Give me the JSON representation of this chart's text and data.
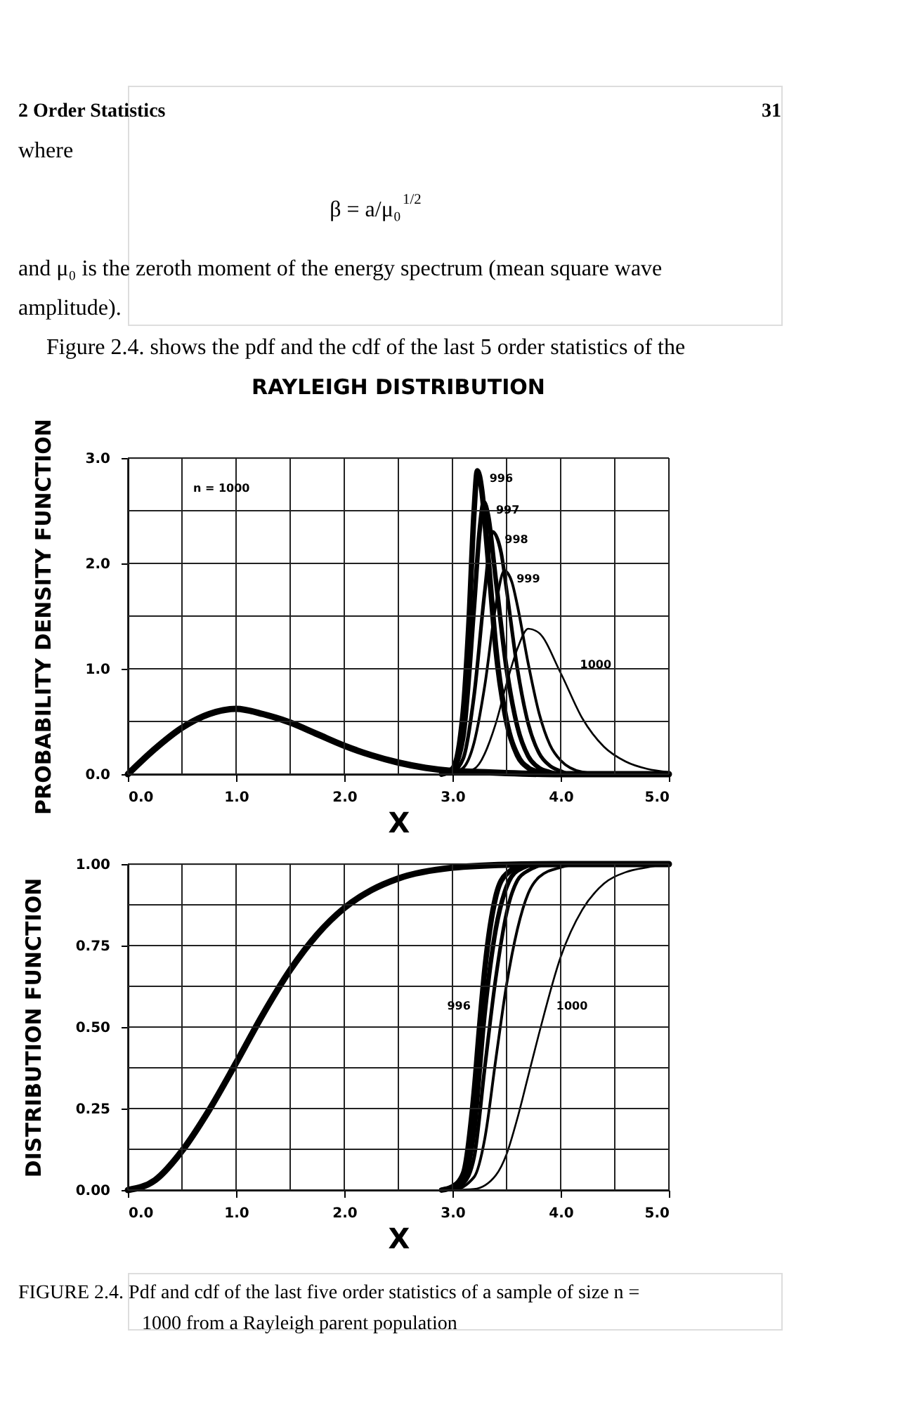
{
  "chart_data": [
    {
      "type": "line",
      "title": "RAYLEIGH DISTRIBUTION",
      "xlabel": "X",
      "ylabel": "PROBABILITY DENSITY FUNCTION",
      "annotations": [
        "2 Order Statistics",
        "31",
        "where",
        "β = a/μ₀$^{1/2}$",
        "and μ₀ is the zeroth moment of the energy spectrum (mean square wave",
        "amplitude).",
        "Figure 2.4. shows the pdf and the cdf of the last 5 order statistics of the",
        "n = 1000"
      ],
      "xlim": [
        0,
        5
      ],
      "ylim": [
        0,
        3
      ],
      "xticks": [
        {
          "value": 0,
          "label": "0.0"
        },
        {
          "value": 0.5,
          "label": null
        },
        {
          "value": 1,
          "label": "1.0"
        },
        {
          "value": 1.5,
          "label": null
        },
        {
          "value": 2,
          "label": "2.0"
        },
        {
          "value": 2.5,
          "label": null
        },
        {
          "value": 3,
          "label": "3.0"
        },
        {
          "value": 3.5,
          "label": null
        },
        {
          "value": 4,
          "label": "4.0"
        },
        {
          "value": 4.5,
          "label": null
        },
        {
          "value": 5,
          "label": "5.0"
        }
      ],
      "yticks": [
        {
          "value": 0,
          "label": "0.0"
        },
        {
          "value": 0.5,
          "label": null
        },
        {
          "value": 1,
          "label": "1.0"
        },
        {
          "value": 1.5,
          "label": null
        },
        {
          "value": 2,
          "label": "2.0"
        },
        {
          "value": 2.5,
          "label": null
        },
        {
          "value": 3,
          "label": "3.0"
        }
      ],
      "grid": true,
      "legend": false,
      "line_style": "solid",
      "marker": "none",
      "series": [
        {
          "color": "#000000",
          "x": [
            0,
            0.25,
            0.5,
            0.75,
            1,
            1.25,
            1.5,
            1.75,
            2,
            2.25,
            2.5,
            2.75,
            3,
            3.25,
            3.5,
            4,
            5
          ],
          "values": [
            0,
            0.24,
            0.44,
            0.57,
            0.62,
            0.57,
            0.49,
            0.38,
            0.27,
            0.18,
            0.11,
            0.06,
            0.03,
            0.02,
            0.01,
            0,
            0
          ]
        },
        {
          "name": "996",
          "color": "#000000",
          "x": [
            2.9,
            3.0,
            3.1,
            3.15,
            3.2,
            3.23,
            3.27,
            3.3,
            3.35,
            3.4,
            3.5,
            3.6,
            3.7,
            3.8,
            3.9,
            5
          ],
          "values": [
            0,
            0.05,
            0.6,
            1.4,
            2.5,
            2.88,
            2.7,
            2.4,
            1.8,
            1.2,
            0.5,
            0.18,
            0.06,
            0.02,
            0,
            0
          ]
        },
        {
          "name": "997",
          "color": "#000000",
          "x": [
            2.9,
            3.0,
            3.1,
            3.2,
            3.25,
            3.29,
            3.33,
            3.4,
            3.5,
            3.6,
            3.7,
            3.8,
            3.9,
            4.0,
            5
          ],
          "values": [
            0,
            0.04,
            0.35,
            1.6,
            2.3,
            2.58,
            2.45,
            1.85,
            1.0,
            0.45,
            0.17,
            0.06,
            0.02,
            0,
            0
          ]
        },
        {
          "name": "998",
          "color": "#000000",
          "x": [
            2.9,
            3.0,
            3.1,
            3.2,
            3.3,
            3.37,
            3.45,
            3.5,
            3.6,
            3.7,
            3.8,
            3.9,
            4.0,
            4.1,
            5
          ],
          "values": [
            0,
            0.02,
            0.15,
            0.75,
            1.75,
            2.3,
            2.1,
            1.75,
            1.0,
            0.48,
            0.2,
            0.08,
            0.03,
            0,
            0
          ]
        },
        {
          "name": "999",
          "color": "#000000",
          "x": [
            2.9,
            3.0,
            3.1,
            3.2,
            3.3,
            3.4,
            3.48,
            3.55,
            3.6,
            3.7,
            3.8,
            3.9,
            4.0,
            4.2,
            4.4,
            5
          ],
          "values": [
            0,
            0.01,
            0.06,
            0.3,
            0.85,
            1.6,
            1.93,
            1.82,
            1.6,
            1.05,
            0.58,
            0.28,
            0.13,
            0.02,
            0,
            0
          ]
        },
        {
          "name": "1000",
          "color": "#000000",
          "x": [
            3.0,
            3.2,
            3.4,
            3.5,
            3.6,
            3.7,
            3.8,
            4.0,
            4.2,
            4.4,
            4.6,
            4.8,
            5.0
          ],
          "values": [
            0,
            0.05,
            0.48,
            0.86,
            1.19,
            1.38,
            1.34,
            0.96,
            0.53,
            0.26,
            0.12,
            0.05,
            0.02
          ]
        }
      ]
    },
    {
      "type": "line",
      "xlabel": "X",
      "ylabel": "DISTRIBUTION FUNCTION",
      "annotations": [
        "FIGURE 2.4.  Pdf and cdf of the last five order statistics of a sample of size n =",
        "1000 from a Rayleigh parent population"
      ],
      "xlim": [
        0,
        5
      ],
      "ylim": [
        0,
        1
      ],
      "xticks": [
        {
          "value": 0,
          "label": "0.0"
        },
        {
          "value": 0.5,
          "label": null
        },
        {
          "value": 1,
          "label": "1.0"
        },
        {
          "value": 1.5,
          "label": null
        },
        {
          "value": 2,
          "label": "2.0"
        },
        {
          "value": 2.5,
          "label": null
        },
        {
          "value": 3,
          "label": "3.0"
        },
        {
          "value": 3.5,
          "label": null
        },
        {
          "value": 4,
          "label": "4.0"
        },
        {
          "value": 4.5,
          "label": null
        },
        {
          "value": 5,
          "label": "5.0"
        }
      ],
      "yticks": [
        {
          "value": 0,
          "label": "0.00"
        },
        {
          "value": 0.125,
          "label": null
        },
        {
          "value": 0.25,
          "label": "0.25"
        },
        {
          "value": 0.375,
          "label": null
        },
        {
          "value": 0.5,
          "label": "0.50"
        },
        {
          "value": 0.625,
          "label": null
        },
        {
          "value": 0.75,
          "label": "0.75"
        },
        {
          "value": 0.875,
          "label": null
        },
        {
          "value": 1,
          "label": "1.00"
        }
      ],
      "grid": true,
      "legend": false,
      "line_style": "solid",
      "marker": "none",
      "series": [
        {
          "color": "#000000",
          "x": [
            0,
            0.25,
            0.5,
            0.75,
            1,
            1.25,
            1.5,
            1.75,
            2,
            2.25,
            2.5,
            3,
            3.5,
            4,
            5
          ],
          "values": [
            0,
            0.03,
            0.12,
            0.245,
            0.39,
            0.54,
            0.675,
            0.784,
            0.865,
            0.92,
            0.956,
            0.989,
            0.998,
            1,
            1
          ]
        },
        {
          "name": "996",
          "color": "#000000",
          "x": [
            2.9,
            3.0,
            3.1,
            3.2,
            3.25,
            3.3,
            3.4,
            3.5,
            3.7,
            5
          ],
          "values": [
            0,
            0.01,
            0.05,
            0.3,
            0.5,
            0.68,
            0.9,
            0.97,
            1,
            1
          ]
        },
        {
          "color": "#000000",
          "x": [
            2.9,
            3.0,
            3.1,
            3.2,
            3.3,
            3.4,
            3.5,
            3.6,
            3.8,
            5
          ],
          "values": [
            0,
            0.01,
            0.03,
            0.18,
            0.55,
            0.8,
            0.93,
            0.98,
            1,
            1
          ]
        },
        {
          "color": "#000000",
          "x": [
            2.9,
            3.0,
            3.1,
            3.2,
            3.3,
            3.4,
            3.5,
            3.6,
            3.7,
            3.9,
            5
          ],
          "values": [
            0,
            0.005,
            0.02,
            0.1,
            0.38,
            0.65,
            0.85,
            0.95,
            0.98,
            1,
            1
          ]
        },
        {
          "color": "#000000",
          "x": [
            2.9,
            3.0,
            3.2,
            3.3,
            3.4,
            3.5,
            3.6,
            3.7,
            3.8,
            4.0,
            4.2,
            5
          ],
          "values": [
            0,
            0,
            0.04,
            0.16,
            0.4,
            0.63,
            0.8,
            0.91,
            0.96,
            0.99,
            1,
            1
          ]
        },
        {
          "name": "1000",
          "color": "#000000",
          "x": [
            3.0,
            3.2,
            3.4,
            3.5,
            3.6,
            3.7,
            3.8,
            4.0,
            4.2,
            4.4,
            4.6,
            4.8,
            5.0
          ],
          "values": [
            0,
            0.003,
            0.045,
            0.11,
            0.22,
            0.35,
            0.48,
            0.715,
            0.86,
            0.94,
            0.975,
            0.99,
            1
          ]
        }
      ]
    }
  ]
}
